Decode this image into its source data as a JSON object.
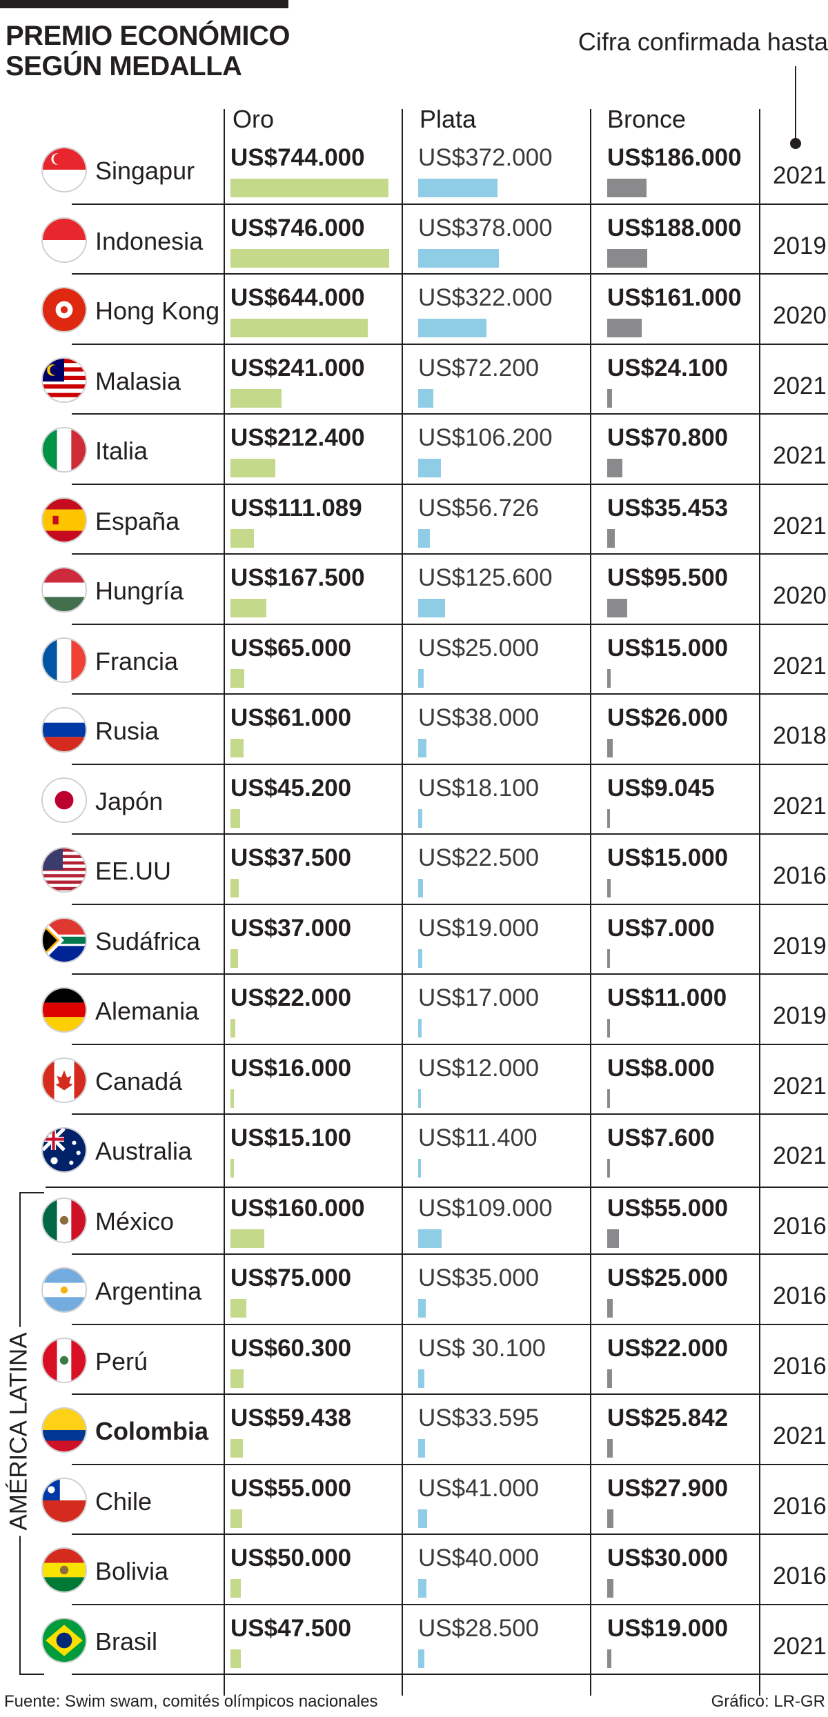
{
  "header": {
    "title_line1": "PREMIO ECONÓMICO",
    "title_line2": "SEGÚN MEDALLA",
    "subtitle": "Cifra confirmada hasta"
  },
  "columns": {
    "gold": "Oro",
    "silver": "Plata",
    "bronze": "Bronce"
  },
  "group_label": "AMÉRICA LATINA",
  "footer": {
    "source": "Fuente: Swim swam, comités olímpicos nacionales",
    "credit": "Gráfico: LR-GR"
  },
  "colors": {
    "gold": "#c4d98a",
    "silver": "#8fcde6",
    "bronze": "#8a8a8c",
    "text": "#231f20"
  },
  "chart_data": {
    "type": "bar",
    "series": [
      {
        "name": "Oro"
      },
      {
        "name": "Plata"
      },
      {
        "name": "Bronce"
      }
    ],
    "rows": [
      {
        "country": "Singapur",
        "flag": "sg",
        "gold": "US$744.000",
        "gold_v": 744000,
        "silver": "US$372.000",
        "silver_v": 372000,
        "bronze": "US$186.000",
        "bronze_v": 186000,
        "year": "2021"
      },
      {
        "country": "Indonesia",
        "flag": "id",
        "gold": "US$746.000",
        "gold_v": 746000,
        "silver": "US$378.000",
        "silver_v": 378000,
        "bronze": "US$188.000",
        "bronze_v": 188000,
        "year": "2019"
      },
      {
        "country": "Hong Kong",
        "flag": "hk",
        "gold": "US$644.000",
        "gold_v": 644000,
        "silver": "US$322.000",
        "silver_v": 322000,
        "bronze": "US$161.000",
        "bronze_v": 161000,
        "year": "2020"
      },
      {
        "country": "Malasia",
        "flag": "my",
        "gold": "US$241.000",
        "gold_v": 241000,
        "silver": "US$72.200",
        "silver_v": 72200,
        "bronze": "US$24.100",
        "bronze_v": 24100,
        "year": "2021"
      },
      {
        "country": "Italia",
        "flag": "it",
        "gold": "US$212.400",
        "gold_v": 212400,
        "silver": "US$106.200",
        "silver_v": 106200,
        "bronze": "US$70.800",
        "bronze_v": 70800,
        "year": "2021"
      },
      {
        "country": "España",
        "flag": "es",
        "gold": "US$111.089",
        "gold_v": 111089,
        "silver": "US$56.726",
        "silver_v": 56726,
        "bronze": "US$35.453",
        "bronze_v": 35453,
        "year": "2021"
      },
      {
        "country": "Hungría",
        "flag": "hu",
        "gold": "US$167.500",
        "gold_v": 167500,
        "silver": "US$125.600",
        "silver_v": 125600,
        "bronze": "US$95.500",
        "bronze_v": 95500,
        "year": "2020"
      },
      {
        "country": "Francia",
        "flag": "fr",
        "gold": "US$65.000",
        "gold_v": 65000,
        "silver": "US$25.000",
        "silver_v": 25000,
        "bronze": "US$15.000",
        "bronze_v": 15000,
        "year": "2021"
      },
      {
        "country": "Rusia",
        "flag": "ru",
        "gold": "US$61.000",
        "gold_v": 61000,
        "silver": "US$38.000",
        "silver_v": 38000,
        "bronze": "US$26.000",
        "bronze_v": 26000,
        "year": "2018"
      },
      {
        "country": "Japón",
        "flag": "jp",
        "gold": "US$45.200",
        "gold_v": 45200,
        "silver": "US$18.100",
        "silver_v": 18100,
        "bronze": "US$9.045",
        "bronze_v": 9045,
        "year": "2021"
      },
      {
        "country": "EE.UU",
        "flag": "us",
        "gold": "US$37.500",
        "gold_v": 37500,
        "silver": "US$22.500",
        "silver_v": 22500,
        "bronze": "US$15.000",
        "bronze_v": 15000,
        "year": "2016"
      },
      {
        "country": "Sudáfrica",
        "flag": "za",
        "gold": "US$37.000",
        "gold_v": 37000,
        "silver": "US$19.000",
        "silver_v": 19000,
        "bronze": "US$7.000",
        "bronze_v": 7000,
        "year": "2019"
      },
      {
        "country": "Alemania",
        "flag": "de",
        "gold": "US$22.000",
        "gold_v": 22000,
        "silver": "US$17.000",
        "silver_v": 17000,
        "bronze": "US$11.000",
        "bronze_v": 11000,
        "year": "2019"
      },
      {
        "country": "Canadá",
        "flag": "ca",
        "gold": "US$16.000",
        "gold_v": 16000,
        "silver": "US$12.000",
        "silver_v": 12000,
        "bronze": "US$8.000",
        "bronze_v": 8000,
        "year": "2021"
      },
      {
        "country": "Australia",
        "flag": "au",
        "gold": "US$15.100",
        "gold_v": 15100,
        "silver": "US$11.400",
        "silver_v": 11400,
        "bronze": "US$7.600",
        "bronze_v": 7600,
        "year": "2021"
      },
      {
        "country": "México",
        "flag": "mx",
        "latam": true,
        "gold": "US$160.000",
        "gold_v": 160000,
        "silver": "US$109.000",
        "silver_v": 109000,
        "bronze": "US$55.000",
        "bronze_v": 55000,
        "year": "2016"
      },
      {
        "country": "Argentina",
        "flag": "ar",
        "latam": true,
        "gold": "US$75.000",
        "gold_v": 75000,
        "silver": "US$35.000",
        "silver_v": 35000,
        "bronze": "US$25.000",
        "bronze_v": 25000,
        "year": "2016"
      },
      {
        "country": "Perú",
        "flag": "pe",
        "latam": true,
        "gold": "US$60.300",
        "gold_v": 60300,
        "silver": "US$ 30.100",
        "silver_v": 30100,
        "bronze": "US$22.000",
        "bronze_v": 22000,
        "year": "2016"
      },
      {
        "country": "Colombia",
        "flag": "co",
        "latam": true,
        "highlight": true,
        "gold": "US$59.438",
        "gold_v": 59438,
        "silver": "US$33.595",
        "silver_v": 33595,
        "bronze": "US$25.842",
        "bronze_v": 25842,
        "year": "2021"
      },
      {
        "country": "Chile",
        "flag": "cl",
        "latam": true,
        "gold": "US$55.000",
        "gold_v": 55000,
        "silver": "US$41.000",
        "silver_v": 41000,
        "bronze": "US$27.900",
        "bronze_v": 27900,
        "year": "2016"
      },
      {
        "country": "Bolivia",
        "flag": "bo",
        "latam": true,
        "gold": "US$50.000",
        "gold_v": 50000,
        "silver": "US$40.000",
        "silver_v": 40000,
        "bronze": "US$30.000",
        "bronze_v": 30000,
        "year": "2016"
      },
      {
        "country": "Brasil",
        "flag": "br",
        "latam": true,
        "gold": "US$47.500",
        "gold_v": 47500,
        "silver": "US$28.500",
        "silver_v": 28500,
        "bronze": "US$19.000",
        "bronze_v": 19000,
        "year": "2021"
      }
    ]
  }
}
